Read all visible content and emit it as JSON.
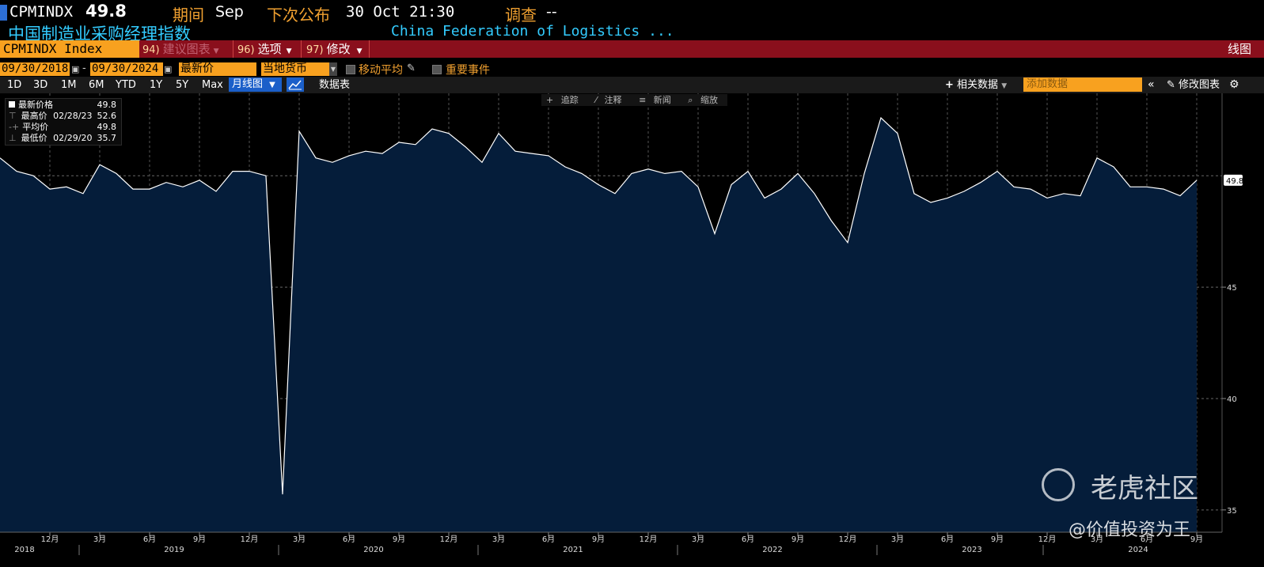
{
  "header": {
    "ticker": "CPMINDX",
    "last_value": "49.8",
    "period_label": "期间",
    "period_value": "Sep",
    "next_release_label": "下次公布",
    "next_release_value": "30 Oct 21:30",
    "survey_label": "调查",
    "survey_value": "--",
    "title_cn": "中国制造业采购经理指数",
    "source": "China Federation of Logistics ..."
  },
  "menubar": {
    "security": "CPMINDX Index",
    "item1_num": "94)",
    "item1": "建议图表",
    "item2_num": "96)",
    "item2": "选项",
    "item3_num": "97)",
    "item3": "修改",
    "right_label": "线图"
  },
  "options": {
    "start_date": "09/30/2018",
    "end_date": "09/30/2024",
    "field": "最新价",
    "currency": "当地货币",
    "moving_avg": "移动平均",
    "events": "重要事件"
  },
  "toolbar": {
    "periods": [
      "1D",
      "3D",
      "1M",
      "6M",
      "YTD",
      "1Y",
      "5Y",
      "Max"
    ],
    "chart_type": "月线图",
    "table_label": "数据表",
    "related_label": "相关数据",
    "add_placeholder": "添加数据",
    "edit_chart": "修改图表"
  },
  "legend": {
    "last_label": "最新价格",
    "last_value": "49.8",
    "high_label": "最高价",
    "high_date": "02/28/23",
    "high_value": "52.6",
    "avg_label": "平均价",
    "avg_value": "49.8",
    "low_label": "最低价",
    "low_date": "02/29/20",
    "low_value": "35.7"
  },
  "mini_tools": [
    "追踪",
    "注释",
    "新闻",
    "缩放"
  ],
  "chart_data": {
    "type": "area",
    "series": [
      {
        "x": [
          "2018-09",
          "2018-10",
          "2018-11",
          "2018-12",
          "2019-01",
          "2019-02",
          "2019-03",
          "2019-04",
          "2019-05",
          "2019-06",
          "2019-07",
          "2019-08",
          "2019-09",
          "2019-10",
          "2019-11",
          "2019-12",
          "2020-01",
          "2020-02",
          "2020-03",
          "2020-04",
          "2020-05",
          "2020-06",
          "2020-07",
          "2020-08",
          "2020-09",
          "2020-10",
          "2020-11",
          "2020-12",
          "2021-01",
          "2021-02",
          "2021-03",
          "2021-04",
          "2021-05",
          "2021-06",
          "2021-07",
          "2021-08",
          "2021-09",
          "2021-10",
          "2021-11",
          "2021-12",
          "2022-01",
          "2022-02",
          "2022-03",
          "2022-04",
          "2022-05",
          "2022-06",
          "2022-07",
          "2022-08",
          "2022-09",
          "2022-10",
          "2022-11",
          "2022-12",
          "2023-01",
          "2023-02",
          "2023-03",
          "2023-04",
          "2023-05",
          "2023-06",
          "2023-07",
          "2023-08",
          "2023-09",
          "2023-10",
          "2023-11",
          "2023-12",
          "2024-01",
          "2024-02",
          "2024-03",
          "2024-04",
          "2024-05",
          "2024-06",
          "2024-07",
          "2024-08",
          "2024-09"
        ],
        "values": [
          50.8,
          50.2,
          50.0,
          49.4,
          49.5,
          49.2,
          50.5,
          50.1,
          49.4,
          49.4,
          49.7,
          49.5,
          49.8,
          49.3,
          50.2,
          50.2,
          50.0,
          35.7,
          52.0,
          50.8,
          50.6,
          50.9,
          51.1,
          51.0,
          51.5,
          51.4,
          52.1,
          51.9,
          51.3,
          50.6,
          51.9,
          51.1,
          51.0,
          50.9,
          50.4,
          50.1,
          49.6,
          49.2,
          50.1,
          50.3,
          50.1,
          50.2,
          49.5,
          47.4,
          49.6,
          50.2,
          49.0,
          49.4,
          50.1,
          49.2,
          48.0,
          47.0,
          50.1,
          52.6,
          51.9,
          49.2,
          48.8,
          49.0,
          49.3,
          49.7,
          50.2,
          49.5,
          49.4,
          49.0,
          49.2,
          49.1,
          50.8,
          50.4,
          49.5,
          49.5,
          49.4,
          49.1,
          49.8
        ]
      }
    ],
    "x_tick_labels": [
      "12月",
      "3月",
      "6月",
      "9月",
      "12月",
      "3月",
      "6月",
      "9月",
      "12月",
      "3月",
      "6月",
      "9月",
      "12月",
      "3月",
      "6月",
      "9月",
      "12月",
      "3月",
      "6月",
      "9月",
      "12月",
      "3月",
      "6月",
      "9月"
    ],
    "year_labels": [
      "2018",
      "2019",
      "2020",
      "2021",
      "2022",
      "2023",
      "2024"
    ],
    "y_ticks": [
      35,
      40,
      45
    ],
    "ylim": [
      34.0,
      53.7
    ],
    "last_marker": "49.8",
    "line_color": "#ffffff",
    "fill_color": "#051d3a"
  },
  "watermark": {
    "brand": "老虎社区",
    "author": "@价值投资为王"
  }
}
